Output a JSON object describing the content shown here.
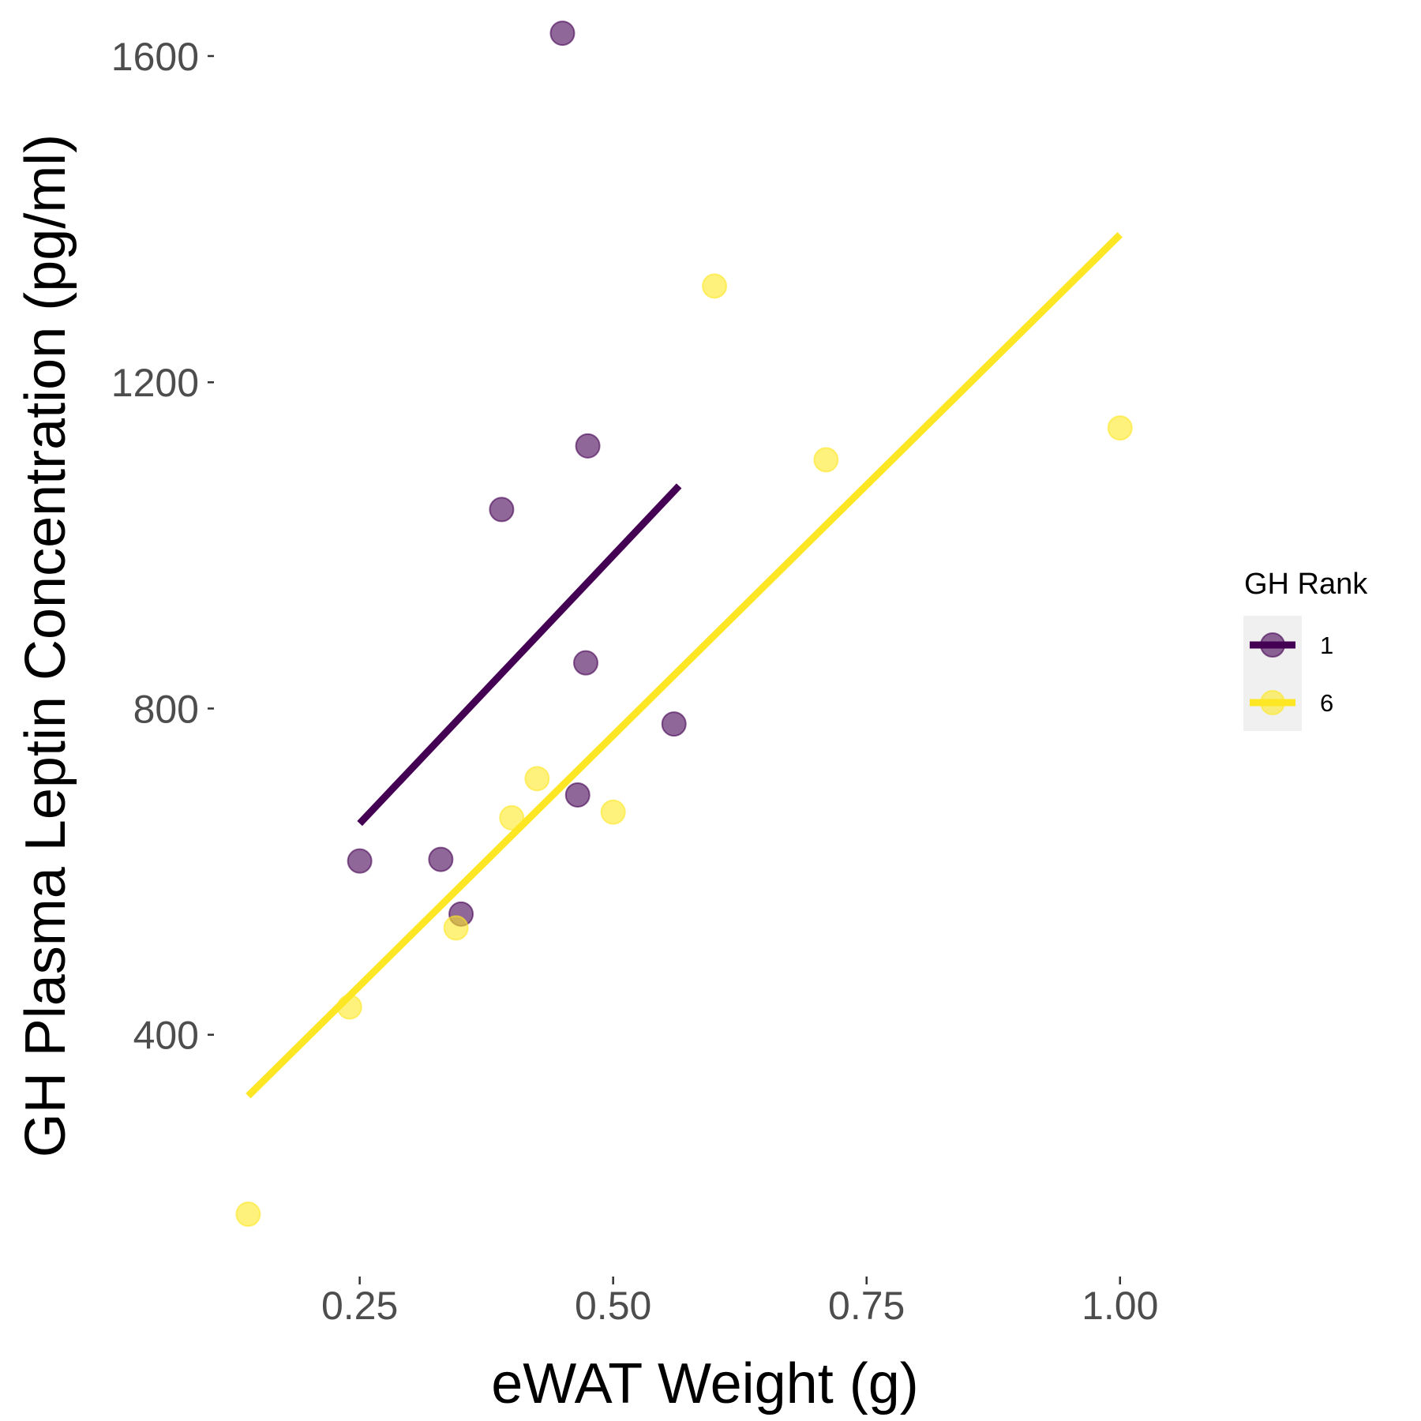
{
  "chart_data": {
    "type": "scatter",
    "xlabel": "eWAT Weight (g)",
    "ylabel": "GH Plasma Leptin Concentration (pg/ml)",
    "x_ticks": [
      0.25,
      0.5,
      0.75,
      1.0
    ],
    "x_tick_labels": [
      "0.25",
      "0.50",
      "0.75",
      "1.00"
    ],
    "y_ticks": [
      400,
      800,
      1200,
      1600
    ],
    "y_tick_labels": [
      "400",
      "800",
      "1200",
      "1600"
    ],
    "xlim": [
      0.107,
      1.11
    ],
    "ylim": [
      120,
      1630
    ],
    "grid": false,
    "legend": {
      "title": "GH Rank",
      "placement": "right"
    },
    "series": [
      {
        "name": "1",
        "color": "#440154",
        "points": [
          {
            "x": 0.25,
            "y": 613
          },
          {
            "x": 0.33,
            "y": 615
          },
          {
            "x": 0.35,
            "y": 548
          },
          {
            "x": 0.39,
            "y": 1044
          },
          {
            "x": 0.45,
            "y": 1628
          },
          {
            "x": 0.465,
            "y": 694
          },
          {
            "x": 0.473,
            "y": 856
          },
          {
            "x": 0.475,
            "y": 1122
          },
          {
            "x": 0.56,
            "y": 781
          }
        ],
        "trend": {
          "x": [
            0.25,
            0.565
          ],
          "y": [
            659,
            1073
          ]
        }
      },
      {
        "name": "6",
        "color": "#FDE725",
        "points": [
          {
            "x": 0.14,
            "y": 180
          },
          {
            "x": 0.24,
            "y": 434
          },
          {
            "x": 0.345,
            "y": 531
          },
          {
            "x": 0.4,
            "y": 666
          },
          {
            "x": 0.425,
            "y": 714
          },
          {
            "x": 0.5,
            "y": 673
          },
          {
            "x": 0.6,
            "y": 1318
          },
          {
            "x": 0.71,
            "y": 1105
          },
          {
            "x": 1.0,
            "y": 1144
          }
        ],
        "trend": {
          "x": [
            0.14,
            1.0
          ],
          "y": [
            325,
            1381
          ]
        }
      }
    ]
  }
}
